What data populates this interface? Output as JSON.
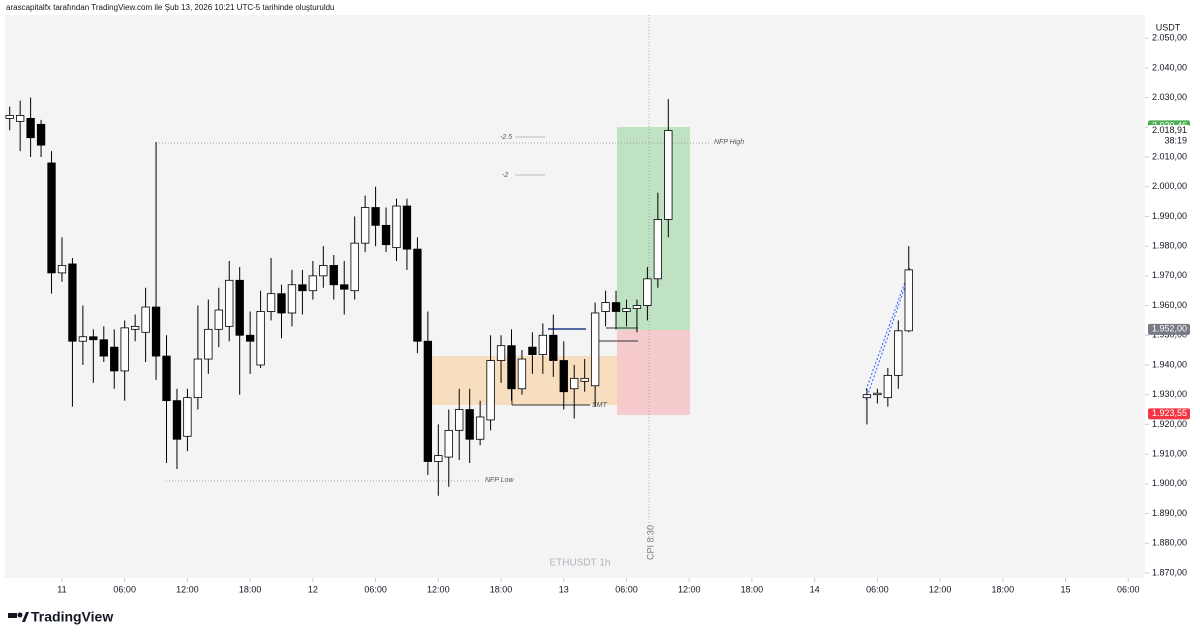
{
  "header": "arascapitalfx tarafından TradingView.com ile Şub 13, 2026 10:21 UTC-5 tarihinde oluşturuldu",
  "logo": "TradingView",
  "chart_data": {
    "type": "candlestick",
    "watermark": "ETHUSDT 1h",
    "currency": "USDT",
    "countdown": "38:19",
    "annotations": {
      "level_a": "-2.5",
      "level_b": "-2",
      "nfp_high": "NFP High",
      "nfp_low": "NFP Low",
      "smt": "SMT",
      "cpi": "CPI 8:30"
    },
    "xlim": [
      -5.45,
      103.6
    ],
    "ylim": [
      1868.3,
      2057.8
    ],
    "xticks": [
      {
        "value": 0,
        "label": "11"
      },
      {
        "value": 6,
        "label": "06:00"
      },
      {
        "value": 12,
        "label": "12:00"
      },
      {
        "value": 18,
        "label": "18:00"
      },
      {
        "value": 24,
        "label": "12"
      },
      {
        "value": 30,
        "label": "06:00"
      },
      {
        "value": 36,
        "label": "12:00"
      },
      {
        "value": 42,
        "label": "18:00"
      },
      {
        "value": 48,
        "label": "13"
      },
      {
        "value": 54,
        "label": "06:00"
      },
      {
        "value": 60,
        "label": "12:00"
      },
      {
        "value": 66,
        "label": "18:00"
      },
      {
        "value": 72,
        "label": "14"
      },
      {
        "value": 78,
        "label": "06:00"
      },
      {
        "value": 84,
        "label": "12:00"
      },
      {
        "value": 90,
        "label": "18:00"
      },
      {
        "value": 96,
        "label": "15"
      },
      {
        "value": 102,
        "label": "06:00"
      }
    ],
    "yticks": [
      {
        "value": 1870,
        "label": "1.870,00"
      },
      {
        "value": 1880,
        "label": "1.880,00"
      },
      {
        "value": 1890,
        "label": "1.890,00"
      },
      {
        "value": 1900,
        "label": "1.900,00"
      },
      {
        "value": 1910,
        "label": "1.910,00"
      },
      {
        "value": 1920,
        "label": "1.920,00"
      },
      {
        "value": 1930,
        "label": "1.930,00"
      },
      {
        "value": 1940,
        "label": "1.940,00"
      },
      {
        "value": 1950,
        "label": "1.950,00"
      },
      {
        "value": 1960,
        "label": "1.960,00"
      },
      {
        "value": 1970,
        "label": "1.970,00"
      },
      {
        "value": 1980,
        "label": "1.980,00"
      },
      {
        "value": 1990,
        "label": "1.990,00"
      },
      {
        "value": 2000,
        "label": "2.000,00"
      },
      {
        "value": 2010,
        "label": "2.010,00"
      },
      {
        "value": 2020,
        "label": "2.020,00"
      },
      {
        "value": 2030,
        "label": "2.030,00"
      },
      {
        "value": 2040,
        "label": "2.040,00"
      },
      {
        "value": 2050,
        "label": "2.050,00"
      }
    ],
    "price_labels": [
      {
        "value": 2020.46,
        "label": "2.020,46",
        "color": "#4caf50"
      },
      {
        "value": 2018.91,
        "label": "2.018,91",
        "color": "#ffffff"
      },
      {
        "value": 1952,
        "label": "1.952,00",
        "color": "#787b86"
      },
      {
        "value": 1923.55,
        "label": "1.923,55",
        "color": "#f23645"
      }
    ],
    "candles": {
      "x": [
        -5,
        -4,
        -3,
        -2,
        -1,
        0,
        1,
        2,
        3,
        4,
        5,
        6,
        7,
        8,
        9,
        10,
        11,
        12,
        13,
        14,
        15,
        16,
        17,
        18,
        19,
        20,
        21,
        22,
        23,
        24,
        25,
        26,
        27,
        28,
        29,
        30,
        31,
        32,
        33,
        34,
        35,
        36,
        37,
        38,
        39,
        40,
        41,
        42,
        43,
        44,
        45,
        46,
        47,
        48,
        49,
        50,
        51,
        52,
        53,
        54,
        55,
        56,
        57,
        58
      ],
      "open": [
        2023,
        2022,
        2023,
        2021,
        2008,
        1971,
        1974,
        1948,
        1949.5,
        1948.5,
        1946,
        1938,
        1952,
        1951,
        1959.5,
        1943,
        1928,
        1916,
        1929,
        1942,
        1952,
        1953,
        1968.5,
        1950,
        1940,
        1958,
        1964,
        1957.5,
        1967,
        1965,
        1970,
        1973.5,
        1967,
        1965,
        1981,
        1993,
        1987,
        1979.5,
        1993.5,
        1979,
        1948,
        1907.5,
        1909,
        1918,
        1925,
        1915,
        1921.5,
        1941.5,
        1946.5,
        1932,
        1946,
        1943.5,
        1950,
        1941.5,
        1932,
        1934.5,
        1933,
        1958,
        1961,
        1958,
        1959,
        1960,
        1969,
        1989
      ],
      "high": [
        2027,
        2029,
        2030,
        2022.5,
        2012,
        1983,
        1976,
        1960,
        1952,
        1953,
        1952,
        1955,
        1957,
        1966,
        2015,
        1950,
        1932,
        1932,
        1960,
        1962,
        1966,
        1975,
        1973,
        1958,
        1965,
        1976,
        1967,
        1972,
        1972,
        1975,
        1980,
        1977,
        1975,
        1990,
        1997,
        2000,
        1993,
        1996,
        1996,
        1983,
        1958,
        1920,
        1925,
        1932,
        1932,
        1928,
        1950,
        1950,
        1952,
        1945,
        1951,
        1954,
        1957,
        1948,
        1940,
        1942,
        1961,
        1965,
        1965,
        1962,
        1962,
        1973,
        1998,
        2029.5
      ],
      "low": [
        2019,
        2012,
        2010,
        2010,
        1964,
        1968,
        1926,
        1940,
        1934,
        1941,
        1932,
        1928,
        1948,
        1941,
        1935,
        1907,
        1905,
        1911,
        1925,
        1937,
        1946,
        1948,
        1930,
        1937,
        1939,
        1955,
        1949,
        1953,
        1957,
        1962,
        1966,
        1962,
        1957,
        1962,
        1978,
        1980,
        1978,
        1975,
        1972,
        1944,
        1903,
        1896,
        1899,
        1908,
        1907,
        1913,
        1918,
        1934,
        1928,
        1930,
        1937,
        1937,
        1936,
        1925,
        1922,
        1931,
        1926,
        1953,
        1952,
        1953,
        1951,
        1955,
        1966,
        1983
      ],
      "close": [
        2024,
        2024,
        2016.5,
        2014,
        1971,
        1973.5,
        1948,
        1949.5,
        1948.5,
        1943,
        1938,
        1952.5,
        1953,
        1959.5,
        1943,
        1928,
        1915,
        1929,
        1942,
        1952,
        1958.5,
        1968.5,
        1950,
        1948,
        1958,
        1964,
        1957.5,
        1967,
        1965,
        1970,
        1973.5,
        1967,
        1965.5,
        1981,
        1993,
        1987,
        1980.5,
        1993.5,
        1979,
        1948,
        1907.5,
        1909.5,
        1918,
        1925,
        1915,
        1922.5,
        1941.5,
        1946.5,
        1932,
        1942,
        1943.5,
        1950,
        1941.5,
        1931,
        1935.5,
        1935.5,
        1957.5,
        1961,
        1958,
        1959,
        1960,
        1969,
        1989,
        2018.91
      ]
    },
    "pattern_candles": {
      "x": [
        77,
        78,
        79,
        80,
        81
      ],
      "open": [
        1929,
        1930,
        1929,
        1936.5,
        1951.5
      ],
      "high": [
        1932,
        1932,
        1939,
        1955,
        1980
      ],
      "low": [
        1920,
        1927,
        1926,
        1932,
        1951
      ],
      "close": [
        1930,
        1930.5,
        1936.5,
        1951.5,
        1972
      ]
    }
  }
}
